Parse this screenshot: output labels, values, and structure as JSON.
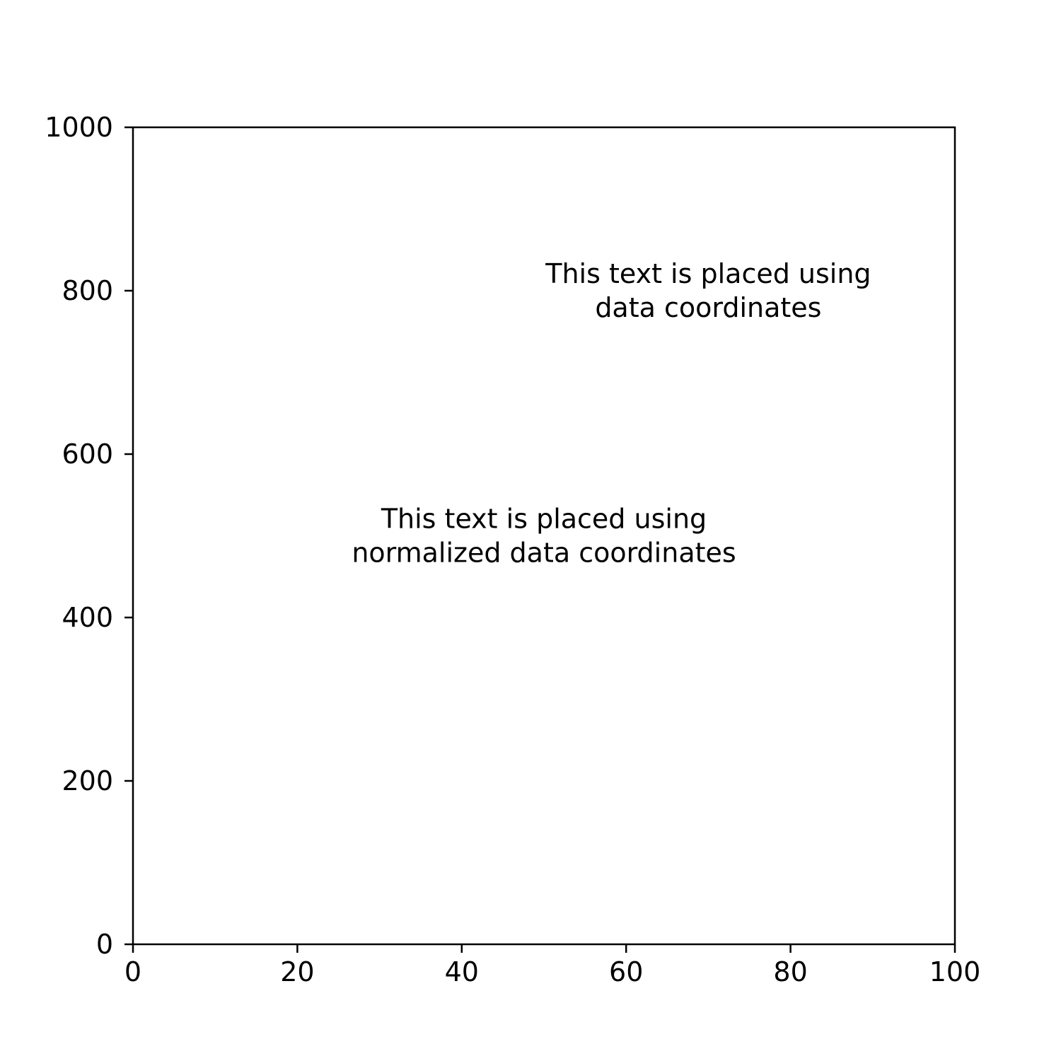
{
  "chart_data": {
    "type": "scatter",
    "title": "",
    "xlabel": "",
    "ylabel": "",
    "xlim": [
      0,
      100
    ],
    "ylim": [
      0,
      1000
    ],
    "grid": false,
    "series": [],
    "x_ticks": [
      "0",
      "20",
      "40",
      "60",
      "80",
      "100"
    ],
    "y_ticks": [
      "0",
      "200",
      "400",
      "600",
      "800",
      "1000"
    ],
    "annotations": [
      {
        "name": "data-coordinates-annotation",
        "lines": [
          "This text is placed using",
          "data coordinates"
        ],
        "x": 70,
        "y": 800,
        "coords": "data"
      },
      {
        "name": "normalized-coordinates-annotation",
        "lines": [
          "This text is placed using",
          "normalized data coordinates"
        ],
        "x": 0.5,
        "y": 0.5,
        "coords": "axes-fraction"
      }
    ],
    "colors": {
      "axes": "#000000",
      "background": "#ffffff",
      "text": "#000000"
    }
  }
}
